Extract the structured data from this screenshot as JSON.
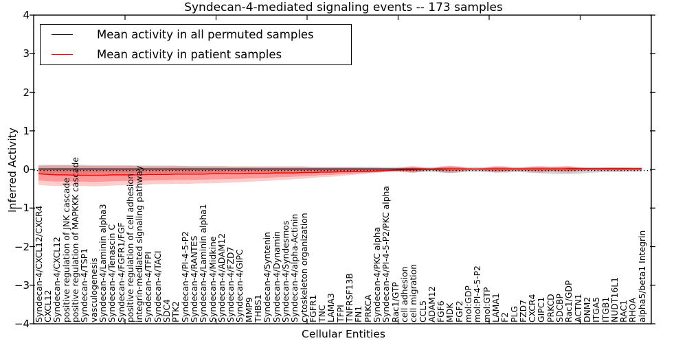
{
  "title": "Syndecan-4-mediated signaling events -- 173 samples",
  "legend": {
    "items": [
      {
        "label": "Mean activity in all permuted samples",
        "color": "#000000"
      },
      {
        "label": "Mean activity in patient samples",
        "color": "#ff0000"
      }
    ]
  },
  "axes": {
    "xlabel": "Cellular Entities",
    "ylabel": "Inferred Activity"
  },
  "chart_data": {
    "type": "line",
    "title": "Syndecan-4-mediated signaling events -- 173 samples",
    "xlabel": "Cellular Entities",
    "ylabel": "Inferred Activity",
    "ylim": [
      -4,
      4
    ],
    "yticks": [
      4,
      3,
      2,
      1,
      0,
      -1,
      -2,
      -3,
      -4
    ],
    "ytick_labels": [
      "4",
      "3",
      "2",
      "1",
      "0",
      "−1",
      "−2",
      "−3",
      "−4"
    ],
    "grid": false,
    "legend_position": "upper left",
    "zero_line_style": "dotted",
    "categories": [
      "Syndecan-4/CXCL12/CXCR4",
      "CXCL12",
      "Syndecan-4/CXCL12",
      "positive regulation of JNK cascade",
      "positive regulation of MAPKKK cascade",
      "Syndecan-4/TSP1",
      "vasculogenesis",
      "Syndecan-4/Laminin alpha3",
      "Syndecan-4/Tenascin C",
      "Syndecan-4/FGFR1/FGF",
      "positive regulation of cell adhesion",
      "integrin-mediated signaling pathway",
      "Syndecan-4/TFPI",
      "Syndecan-4/TACI",
      "SDC4",
      "PTK2",
      "Syndecan-4/PI-4-5-P2",
      "Syndecan-4/RANTES",
      "Syndecan-4/Laminin alpha1",
      "Syndecan-4/Midkine",
      "Syndecan-4/ADAM12",
      "Syndecan-4/FZD7",
      "Syndecan-4/GIPC",
      "MMP9",
      "THBS1",
      "Syndecan-4/Syntenin",
      "Syndecan-4/Dynamin",
      "Syndecan-4/Syndesmos",
      "Syndecan-4/alpha-Actinin",
      "cytoskeleton organization",
      "FGFR1",
      "TNC",
      "LAMA3",
      "TFPI",
      "TNFRSF13B",
      "FN1",
      "PRKCA",
      "Syndecan-4/PKC alpha",
      "Syndecan-4/PI-4-5-P2/PKC alpha",
      "Rac1/GTP",
      "cell adhesion",
      "cell migration",
      "CCL5",
      "ADAM12",
      "FGF6",
      "MDK",
      "FGF2",
      "mol:GDP",
      "mol:PI-4-5-P2",
      "mol:GTP",
      "LAMA1",
      "F2",
      "PLG",
      "FZD7",
      "CXCR4",
      "GIPC1",
      "PRKCD",
      "SDCBP",
      "Rac1/GDP",
      "ACTN1",
      "DNM2",
      "ITGA5",
      "ITGB1",
      "NUDT16L1",
      "RAC1",
      "RHOA",
      "alpha5/beta1 Integrin"
    ],
    "series": [
      {
        "name": "Mean activity in all permuted samples",
        "color": "#000000",
        "constant": 0.0
      },
      {
        "name": "Mean activity in patient samples",
        "color": "#ff0000",
        "values": [
          -0.11,
          -0.13,
          -0.14,
          -0.14,
          -0.15,
          -0.15,
          -0.15,
          -0.15,
          -0.14,
          -0.14,
          -0.14,
          -0.14,
          -0.13,
          -0.13,
          -0.13,
          -0.12,
          -0.12,
          -0.12,
          -0.12,
          -0.11,
          -0.11,
          -0.11,
          -0.11,
          -0.1,
          -0.1,
          -0.1,
          -0.09,
          -0.09,
          -0.09,
          -0.08,
          -0.08,
          -0.07,
          -0.07,
          -0.06,
          -0.06,
          -0.05,
          -0.05,
          -0.04,
          -0.03,
          -0.02,
          -0.01,
          -0.01,
          0.0,
          0.0,
          0.0,
          0.01,
          0.01,
          0.01,
          0.01,
          0.01,
          0.01,
          0.01,
          0.01,
          0.01,
          0.01,
          0.01,
          0.01,
          0.01,
          0.02,
          0.02,
          0.02,
          0.02,
          0.02,
          0.02,
          0.02,
          0.02,
          0.02
        ]
      }
    ],
    "bands": [
      {
        "name": "patient samples spread",
        "color": "#ff0000",
        "upper": [
          0.09,
          0.1,
          0.1,
          0.1,
          0.1,
          0.09,
          0.09,
          0.09,
          0.09,
          0.09,
          0.09,
          0.08,
          0.08,
          0.08,
          0.08,
          0.08,
          0.08,
          0.07,
          0.07,
          0.07,
          0.07,
          0.07,
          0.07,
          0.07,
          0.06,
          0.06,
          0.06,
          0.06,
          0.06,
          0.06,
          0.05,
          0.05,
          0.05,
          0.05,
          0.05,
          0.05,
          0.04,
          0.04,
          0.03,
          0.03,
          0.06,
          0.09,
          0.05,
          0.02,
          0.08,
          0.1,
          0.08,
          0.03,
          0.02,
          0.05,
          0.09,
          0.08,
          0.04,
          0.05,
          0.08,
          0.09,
          0.07,
          0.08,
          0.09,
          0.06,
          0.04,
          0.04,
          0.05,
          0.05,
          0.05,
          0.04,
          0.04
        ],
        "lower": [
          -0.4,
          -0.42,
          -0.43,
          -0.42,
          -0.42,
          -0.43,
          -0.44,
          -0.43,
          -0.42,
          -0.41,
          -0.4,
          -0.4,
          -0.39,
          -0.38,
          -0.38,
          -0.37,
          -0.38,
          -0.37,
          -0.36,
          -0.36,
          -0.35,
          -0.34,
          -0.33,
          -0.32,
          -0.31,
          -0.3,
          -0.28,
          -0.27,
          -0.25,
          -0.24,
          -0.22,
          -0.2,
          -0.19,
          -0.17,
          -0.15,
          -0.13,
          -0.11,
          -0.09,
          -0.06,
          -0.04,
          -0.07,
          -0.09,
          -0.05,
          -0.02,
          -0.07,
          -0.09,
          -0.07,
          -0.03,
          -0.02,
          -0.05,
          -0.08,
          -0.07,
          -0.04,
          -0.05,
          -0.07,
          -0.08,
          -0.06,
          -0.07,
          -0.08,
          -0.05,
          -0.03,
          -0.03,
          -0.04,
          -0.04,
          -0.04,
          -0.03,
          -0.03
        ]
      },
      {
        "name": "permuted samples spread",
        "color": "#999999",
        "upper": [
          0.12,
          0.12,
          0.12,
          0.12,
          0.12,
          0.12,
          0.11,
          0.11,
          0.11,
          0.11,
          0.11,
          0.1,
          0.1,
          0.1,
          0.1,
          0.1,
          0.09,
          0.09,
          0.09,
          0.09,
          0.09,
          0.08,
          0.08,
          0.08,
          0.08,
          0.08,
          0.08,
          0.08,
          0.08,
          0.08,
          0.07,
          0.07,
          0.07,
          0.07,
          0.07,
          0.07,
          0.07,
          0.07,
          0.06,
          0.06,
          0.06,
          0.07,
          0.06,
          0.06,
          0.07,
          0.08,
          0.07,
          0.06,
          0.06,
          0.06,
          0.07,
          0.07,
          0.06,
          0.06,
          0.07,
          0.07,
          0.07,
          0.07,
          0.07,
          0.06,
          0.06,
          0.06,
          0.06,
          0.06,
          0.06,
          0.06,
          0.06
        ],
        "lower": [
          -0.12,
          -0.12,
          -0.12,
          -0.12,
          -0.12,
          -0.12,
          -0.11,
          -0.11,
          -0.11,
          -0.11,
          -0.11,
          -0.1,
          -0.1,
          -0.1,
          -0.1,
          -0.1,
          -0.09,
          -0.09,
          -0.09,
          -0.09,
          -0.09,
          -0.08,
          -0.08,
          -0.08,
          -0.08,
          -0.08,
          -0.08,
          -0.08,
          -0.08,
          -0.08,
          -0.07,
          -0.07,
          -0.07,
          -0.07,
          -0.07,
          -0.07,
          -0.07,
          -0.07,
          -0.06,
          -0.06,
          -0.06,
          -0.08,
          -0.07,
          -0.06,
          -0.08,
          -0.09,
          -0.08,
          -0.06,
          -0.06,
          -0.07,
          -0.08,
          -0.08,
          -0.07,
          -0.07,
          -0.09,
          -0.1,
          -0.11,
          -0.12,
          -0.12,
          -0.11,
          -0.09,
          -0.08,
          -0.07,
          -0.07,
          -0.07,
          -0.06,
          -0.06
        ]
      }
    ]
  }
}
